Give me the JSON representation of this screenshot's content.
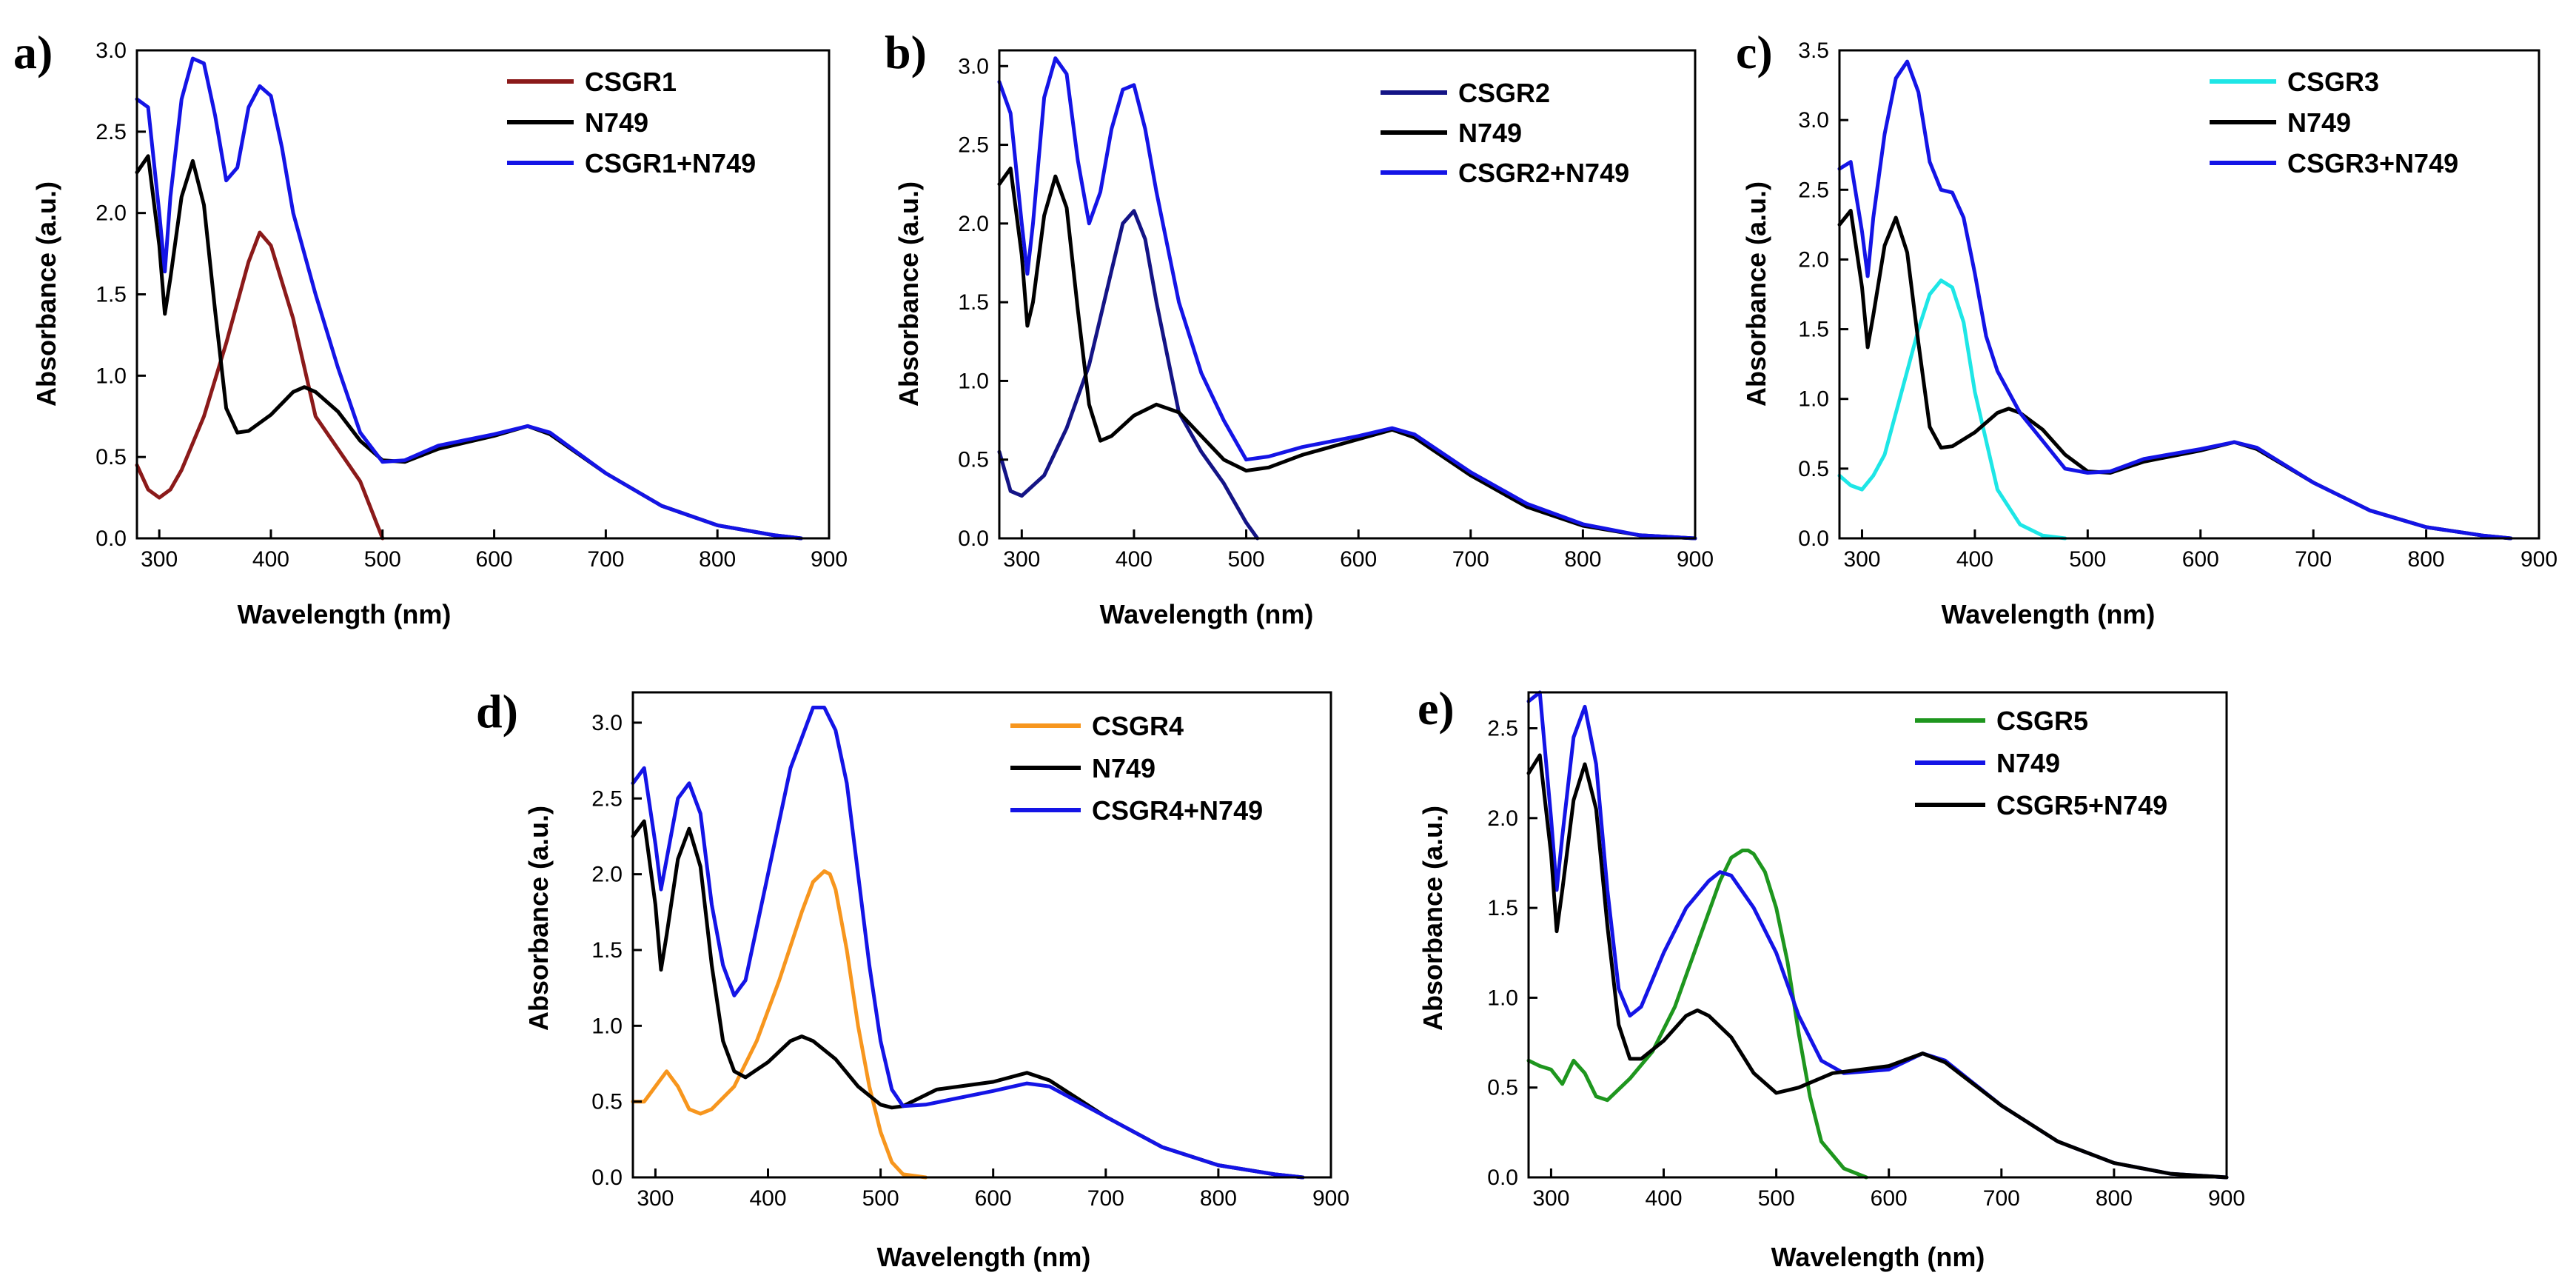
{
  "figure": {
    "panels": [
      {
        "letter": "a)",
        "xlabel": "Wavelength (nm)",
        "ylabel": "Absorbance (a.u.)"
      },
      {
        "letter": "b)",
        "xlabel": "Wavelength (nm)",
        "ylabel": "Absorbance (a.u.)"
      },
      {
        "letter": "c)",
        "xlabel": "Wavelength (nm)",
        "ylabel": "Absorbance (a.u.)"
      },
      {
        "letter": "d)",
        "xlabel": "Wavelength (nm)",
        "ylabel": "Absorbance (a.u.)"
      },
      {
        "letter": "e)",
        "xlabel": "Wavelength (nm)",
        "ylabel": "Absorbance (a.u.)"
      }
    ]
  },
  "chart_data": [
    {
      "type": "line",
      "panel": "a)",
      "xlabel": "Wavelength (nm)",
      "ylabel": "Absorbance (a.u.)",
      "xlim": [
        280,
        900
      ],
      "ylim": [
        0,
        3.0
      ],
      "xticks": [
        300,
        400,
        500,
        600,
        700,
        800,
        900
      ],
      "yticks": [
        0.0,
        0.5,
        1.0,
        1.5,
        2.0,
        2.5,
        3.0
      ],
      "legend_position": "top-right",
      "series": [
        {
          "name": "CSGR1",
          "color": "#8b1a1a",
          "x": [
            280,
            290,
            300,
            310,
            320,
            340,
            360,
            380,
            390,
            400,
            420,
            440,
            460,
            480,
            500
          ],
          "y": [
            0.45,
            0.3,
            0.25,
            0.3,
            0.42,
            0.75,
            1.2,
            1.7,
            1.88,
            1.8,
            1.35,
            0.75,
            0.55,
            0.35,
            0.0
          ]
        },
        {
          "name": "N749",
          "color": "#000000",
          "x": [
            280,
            290,
            300,
            305,
            310,
            320,
            330,
            340,
            350,
            360,
            370,
            380,
            400,
            420,
            430,
            440,
            460,
            480,
            500,
            520,
            550,
            600,
            630,
            650,
            700,
            750,
            800,
            850,
            875
          ],
          "y": [
            2.25,
            2.35,
            1.8,
            1.38,
            1.6,
            2.1,
            2.32,
            2.05,
            1.4,
            0.8,
            0.65,
            0.66,
            0.76,
            0.9,
            0.93,
            0.9,
            0.78,
            0.6,
            0.48,
            0.47,
            0.55,
            0.63,
            0.69,
            0.64,
            0.4,
            0.2,
            0.08,
            0.02,
            0.0
          ]
        },
        {
          "name": "CSGR1+N749",
          "color": "#1414e6",
          "x": [
            280,
            290,
            300,
            305,
            310,
            320,
            330,
            340,
            350,
            360,
            370,
            380,
            390,
            400,
            410,
            420,
            440,
            460,
            480,
            500,
            520,
            550,
            600,
            630,
            650,
            700,
            750,
            800,
            850,
            875
          ],
          "y": [
            2.7,
            2.65,
            2.0,
            1.64,
            2.1,
            2.7,
            2.95,
            2.92,
            2.6,
            2.2,
            2.28,
            2.65,
            2.78,
            2.72,
            2.4,
            2.0,
            1.5,
            1.05,
            0.65,
            0.47,
            0.48,
            0.57,
            0.64,
            0.69,
            0.65,
            0.4,
            0.2,
            0.08,
            0.02,
            0.0
          ]
        }
      ]
    },
    {
      "type": "line",
      "panel": "b)",
      "xlabel": "Wavelength (nm)",
      "ylabel": "Absorbance (a.u.)",
      "xlim": [
        280,
        900
      ],
      "ylim": [
        0,
        3.1
      ],
      "xticks": [
        300,
        400,
        500,
        600,
        700,
        800,
        900
      ],
      "yticks": [
        0.0,
        0.5,
        1.0,
        1.5,
        2.0,
        2.5,
        3.0
      ],
      "legend_position": "top-right",
      "series": [
        {
          "name": "CSGR2",
          "color": "#141486",
          "x": [
            280,
            290,
            300,
            320,
            340,
            360,
            380,
            390,
            400,
            410,
            420,
            440,
            460,
            480,
            500,
            510
          ],
          "y": [
            0.55,
            0.3,
            0.27,
            0.4,
            0.7,
            1.1,
            1.7,
            2.0,
            2.08,
            1.9,
            1.5,
            0.8,
            0.55,
            0.35,
            0.1,
            0.0
          ]
        },
        {
          "name": "N749",
          "color": "#000000",
          "x": [
            280,
            290,
            300,
            305,
            310,
            320,
            330,
            340,
            350,
            360,
            370,
            380,
            400,
            420,
            440,
            460,
            480,
            500,
            520,
            550,
            600,
            630,
            650,
            700,
            750,
            800,
            850,
            900
          ],
          "y": [
            2.25,
            2.35,
            1.8,
            1.35,
            1.5,
            2.05,
            2.3,
            2.1,
            1.45,
            0.85,
            0.62,
            0.65,
            0.78,
            0.85,
            0.8,
            0.65,
            0.5,
            0.43,
            0.45,
            0.53,
            0.63,
            0.69,
            0.64,
            0.4,
            0.2,
            0.08,
            0.02,
            0.0
          ]
        },
        {
          "name": "CSGR2+N749",
          "color": "#1414e6",
          "x": [
            280,
            290,
            300,
            305,
            310,
            320,
            330,
            340,
            350,
            360,
            370,
            380,
            390,
            400,
            410,
            420,
            440,
            460,
            480,
            500,
            520,
            550,
            600,
            630,
            650,
            700,
            750,
            800,
            850,
            900
          ],
          "y": [
            2.9,
            2.7,
            2.0,
            1.68,
            2.0,
            2.8,
            3.05,
            2.95,
            2.4,
            2.0,
            2.2,
            2.6,
            2.85,
            2.88,
            2.6,
            2.2,
            1.5,
            1.05,
            0.75,
            0.5,
            0.52,
            0.58,
            0.65,
            0.7,
            0.66,
            0.42,
            0.22,
            0.09,
            0.02,
            0.0
          ]
        }
      ]
    },
    {
      "type": "line",
      "panel": "c)",
      "xlabel": "Wavelength (nm)",
      "ylabel": "Absorbance (a.u.)",
      "xlim": [
        280,
        900
      ],
      "ylim": [
        0,
        3.5
      ],
      "xticks": [
        300,
        400,
        500,
        600,
        700,
        800,
        900
      ],
      "yticks": [
        0.0,
        0.5,
        1.0,
        1.5,
        2.0,
        2.5,
        3.0,
        3.5
      ],
      "legend_position": "top-right",
      "series": [
        {
          "name": "CSGR3",
          "color": "#1ee6e6",
          "x": [
            280,
            290,
            300,
            310,
            320,
            340,
            350,
            360,
            370,
            380,
            390,
            400,
            420,
            440,
            460,
            480
          ],
          "y": [
            0.45,
            0.38,
            0.35,
            0.45,
            0.6,
            1.2,
            1.5,
            1.75,
            1.85,
            1.8,
            1.55,
            1.05,
            0.35,
            0.1,
            0.02,
            0.0
          ]
        },
        {
          "name": "N749",
          "color": "#000000",
          "x": [
            280,
            290,
            300,
            305,
            310,
            320,
            330,
            340,
            350,
            360,
            370,
            380,
            400,
            420,
            430,
            440,
            460,
            480,
            500,
            520,
            550,
            600,
            630,
            650,
            700,
            750,
            800,
            850,
            875
          ],
          "y": [
            2.25,
            2.35,
            1.8,
            1.37,
            1.6,
            2.1,
            2.3,
            2.05,
            1.4,
            0.8,
            0.65,
            0.66,
            0.76,
            0.9,
            0.93,
            0.9,
            0.78,
            0.6,
            0.48,
            0.47,
            0.55,
            0.63,
            0.69,
            0.64,
            0.4,
            0.2,
            0.08,
            0.02,
            0.0
          ]
        },
        {
          "name": "CSGR3+N749",
          "color": "#1414e6",
          "x": [
            280,
            290,
            300,
            305,
            310,
            320,
            330,
            340,
            350,
            360,
            370,
            380,
            390,
            400,
            410,
            420,
            440,
            460,
            480,
            500,
            520,
            550,
            600,
            630,
            650,
            700,
            750,
            800,
            850,
            875
          ],
          "y": [
            2.65,
            2.7,
            2.2,
            1.88,
            2.3,
            2.9,
            3.3,
            3.42,
            3.2,
            2.7,
            2.5,
            2.48,
            2.3,
            1.9,
            1.45,
            1.2,
            0.9,
            0.7,
            0.5,
            0.47,
            0.48,
            0.57,
            0.64,
            0.69,
            0.65,
            0.4,
            0.2,
            0.08,
            0.02,
            0.0
          ]
        }
      ]
    },
    {
      "type": "line",
      "panel": "d)",
      "xlabel": "Wavelength (nm)",
      "ylabel": "Absorbance (a.u.)",
      "xlim": [
        280,
        900
      ],
      "ylim": [
        0,
        3.2
      ],
      "xticks": [
        300,
        400,
        500,
        600,
        700,
        800,
        900
      ],
      "yticks": [
        0.0,
        0.5,
        1.0,
        1.5,
        2.0,
        2.5,
        3.0
      ],
      "legend_position": "top-right",
      "series": [
        {
          "name": "CSGR4",
          "color": "#f7961e",
          "x": [
            280,
            290,
            300,
            310,
            320,
            330,
            340,
            350,
            370,
            390,
            410,
            430,
            440,
            450,
            455,
            460,
            470,
            480,
            490,
            500,
            510,
            520,
            540
          ],
          "y": [
            0.5,
            0.5,
            0.6,
            0.7,
            0.6,
            0.45,
            0.42,
            0.45,
            0.6,
            0.9,
            1.3,
            1.75,
            1.95,
            2.02,
            2.0,
            1.9,
            1.5,
            1.0,
            0.6,
            0.3,
            0.1,
            0.02,
            0.0
          ]
        },
        {
          "name": "N749",
          "color": "#000000",
          "x": [
            280,
            290,
            300,
            305,
            310,
            320,
            330,
            340,
            350,
            360,
            370,
            380,
            400,
            420,
            430,
            440,
            460,
            480,
            500,
            510,
            520,
            550,
            600,
            630,
            650,
            700,
            750,
            800,
            850,
            875
          ],
          "y": [
            2.25,
            2.35,
            1.8,
            1.37,
            1.6,
            2.1,
            2.3,
            2.05,
            1.4,
            0.9,
            0.7,
            0.66,
            0.76,
            0.9,
            0.93,
            0.9,
            0.78,
            0.6,
            0.48,
            0.46,
            0.47,
            0.58,
            0.63,
            0.69,
            0.64,
            0.4,
            0.2,
            0.08,
            0.02,
            0.0
          ]
        },
        {
          "name": "CSGR4+N749",
          "color": "#1414e6",
          "x": [
            280,
            290,
            300,
            305,
            310,
            320,
            330,
            340,
            350,
            360,
            370,
            380,
            400,
            420,
            440,
            450,
            460,
            470,
            480,
            490,
            500,
            510,
            520,
            540,
            600,
            630,
            650,
            700,
            750,
            800,
            850,
            875
          ],
          "y": [
            2.6,
            2.7,
            2.2,
            1.9,
            2.1,
            2.5,
            2.6,
            2.4,
            1.8,
            1.4,
            1.2,
            1.3,
            2.0,
            2.7,
            3.1,
            3.1,
            2.95,
            2.6,
            2.0,
            1.4,
            0.9,
            0.58,
            0.47,
            0.48,
            0.57,
            0.62,
            0.6,
            0.4,
            0.2,
            0.08,
            0.02,
            0.0
          ]
        }
      ]
    },
    {
      "type": "line",
      "panel": "e)",
      "xlabel": "Wavelength (nm)",
      "ylabel": "Absorbance (a.u.)",
      "xlim": [
        280,
        900
      ],
      "ylim": [
        0,
        2.7
      ],
      "xticks": [
        300,
        400,
        500,
        600,
        700,
        800,
        900
      ],
      "yticks": [
        0.0,
        0.5,
        1.0,
        1.5,
        2.0,
        2.5
      ],
      "legend_position": "top-right",
      "series": [
        {
          "name": "CSGR5",
          "color": "#1e961e",
          "x": [
            280,
            290,
            300,
            310,
            320,
            330,
            340,
            350,
            370,
            390,
            410,
            430,
            450,
            460,
            470,
            475,
            480,
            490,
            500,
            510,
            520,
            530,
            540,
            560,
            580
          ],
          "y": [
            0.65,
            0.62,
            0.6,
            0.52,
            0.65,
            0.58,
            0.45,
            0.43,
            0.55,
            0.7,
            0.95,
            1.3,
            1.65,
            1.78,
            1.82,
            1.82,
            1.8,
            1.7,
            1.5,
            1.2,
            0.8,
            0.45,
            0.2,
            0.05,
            0.0
          ]
        },
        {
          "name": "N749",
          "color": "#1414e6",
          "x": [
            280,
            290,
            300,
            305,
            310,
            320,
            330,
            340,
            350,
            360,
            370,
            380,
            400,
            420,
            440,
            450,
            460,
            480,
            500,
            520,
            540,
            560,
            600,
            630,
            650,
            700,
            750,
            800,
            850,
            900
          ],
          "y": [
            2.65,
            2.7,
            2.0,
            1.6,
            1.9,
            2.45,
            2.62,
            2.3,
            1.6,
            1.05,
            0.9,
            0.95,
            1.25,
            1.5,
            1.65,
            1.7,
            1.68,
            1.5,
            1.25,
            0.9,
            0.65,
            0.58,
            0.6,
            0.69,
            0.65,
            0.4,
            0.2,
            0.08,
            0.02,
            0.0
          ]
        },
        {
          "name": "CSGR5+N749",
          "color": "#000000",
          "x": [
            280,
            290,
            300,
            305,
            310,
            320,
            330,
            340,
            350,
            360,
            370,
            380,
            400,
            420,
            430,
            440,
            460,
            480,
            500,
            520,
            550,
            600,
            630,
            650,
            700,
            750,
            800,
            850,
            900
          ],
          "y": [
            2.25,
            2.35,
            1.8,
            1.37,
            1.6,
            2.1,
            2.3,
            2.05,
            1.4,
            0.85,
            0.66,
            0.66,
            0.76,
            0.9,
            0.93,
            0.9,
            0.78,
            0.58,
            0.47,
            0.5,
            0.58,
            0.62,
            0.69,
            0.64,
            0.4,
            0.2,
            0.08,
            0.02,
            0.0
          ]
        }
      ]
    }
  ]
}
